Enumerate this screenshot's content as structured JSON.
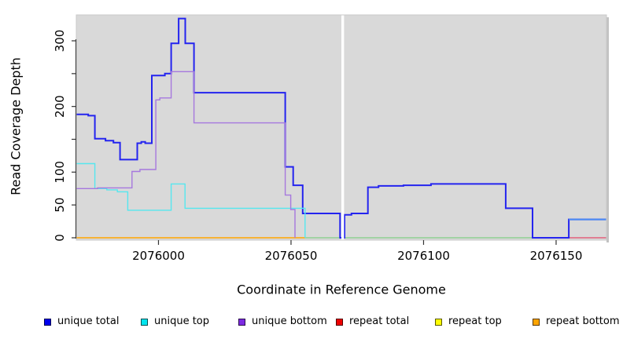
{
  "chart_data": {
    "type": "line",
    "title": "",
    "xlabel": "Coordinate in Reference Genome",
    "ylabel": "Read Coverage Depth",
    "xlim": [
      2075969,
      2076169
    ],
    "ylim": [
      0,
      339
    ],
    "grid": "off",
    "panel_bg": "#d9d9d9",
    "panel_border": "#c9c9c9",
    "x_axis": {
      "ticks": [
        2076000,
        2076050,
        2076100,
        2076150
      ]
    },
    "y_axis": {
      "ticks": [
        0,
        50,
        100,
        150,
        200,
        250,
        300
      ],
      "labeled_ticks": [
        0,
        50,
        100,
        200,
        300
      ]
    },
    "gap_band": {
      "from": 2076069.0,
      "to": 2076070.0,
      "color": "#ffffff",
      "note": "vertical white band, no data"
    },
    "zero_line_segments": [
      {
        "color": "#ffa500",
        "from": 2075969,
        "to": 2076055.3,
        "note": "repeat bottom visible at depth 0"
      },
      {
        "color": "#8fcf92",
        "from": 2076055.3,
        "to": 2076154.8,
        "note": "unique top at 0 blended over repeat lines (green)"
      },
      {
        "color": "#e2607b",
        "from": 2076154.8,
        "to": 2076169,
        "note": "repeat total visible at depth 0"
      }
    ],
    "series": [
      {
        "name": "unique total",
        "color": "#2424ef",
        "line_width": 2,
        "points": [
          [
            2075969,
            188
          ],
          [
            2075973.5,
            186
          ],
          [
            2075976,
            151
          ],
          [
            2075980,
            148
          ],
          [
            2075983,
            145
          ],
          [
            2075985.5,
            119
          ],
          [
            2075992,
            144
          ],
          [
            2075993.5,
            146
          ],
          [
            2075995,
            144
          ],
          [
            2075997.5,
            247
          ],
          [
            2076002.4,
            250
          ],
          [
            2076004.8,
            296
          ],
          [
            2076007.6,
            334
          ],
          [
            2076010.1,
            296
          ],
          [
            2076013.4,
            221
          ],
          [
            2076047.8,
            108
          ],
          [
            2076050.8,
            80
          ],
          [
            2076054.4,
            37
          ],
          [
            2076068.5,
            0
          ],
          [
            2076070.2,
            35
          ],
          [
            2076072.8,
            37
          ],
          [
            2076079,
            77
          ],
          [
            2076083,
            79
          ],
          [
            2076092.4,
            80
          ],
          [
            2076102.8,
            82
          ],
          [
            2076131,
            45
          ],
          [
            2076141.1,
            0
          ],
          [
            2076154.8,
            28
          ],
          [
            2076169,
            28
          ]
        ]
      },
      {
        "name": "unique top",
        "color": "#55e7ef",
        "line_width": 1.4,
        "points": [
          [
            2075969,
            113
          ],
          [
            2075976,
            75
          ],
          [
            2075980.5,
            73
          ],
          [
            2075984.5,
            70
          ],
          [
            2075988.4,
            42
          ],
          [
            2076004.8,
            82
          ],
          [
            2076010,
            45
          ],
          [
            2076055.3,
            0
          ]
        ]
      },
      {
        "name": "unique bottom",
        "color": "#a678de",
        "line_width": 1.4,
        "points": [
          [
            2075969,
            75
          ],
          [
            2075977,
            76
          ],
          [
            2075990,
            101
          ],
          [
            2075993,
            104
          ],
          [
            2075999,
            210
          ],
          [
            2076000.5,
            213
          ],
          [
            2076004.8,
            253
          ],
          [
            2076013.4,
            175
          ],
          [
            2076047.8,
            65
          ],
          [
            2076049.9,
            43
          ],
          [
            2076051.5,
            0
          ]
        ]
      },
      {
        "name": "repeat total",
        "color": "#e2607b",
        "line_width": 1.4,
        "points": [
          [
            2076154.8,
            0
          ],
          [
            2076169,
            0
          ]
        ]
      },
      {
        "name": "repeat top",
        "color": "#ffff00",
        "line_width": 1.4,
        "points": []
      },
      {
        "name": "repeat bottom",
        "color": "#ffa500",
        "line_width": 1.6,
        "points": [
          [
            2075969,
            0
          ],
          [
            2076055.3,
            0
          ]
        ]
      }
    ],
    "highlight_segments": [
      {
        "color": "#4b8bf3",
        "value": 28,
        "from": 2076154.8,
        "to": 2076169,
        "width": 2,
        "note": "final unique-total segment appears lighter blue"
      }
    ],
    "legend": {
      "position": "bottom",
      "items": [
        {
          "label": "unique total",
          "color": "#0000ee"
        },
        {
          "label": "unique top",
          "color": "#00e5ee"
        },
        {
          "label": "unique bottom",
          "color": "#7d2ae2"
        },
        {
          "label": "repeat total",
          "color": "#ee0000"
        },
        {
          "label": "repeat top",
          "color": "#ffff00"
        },
        {
          "label": "repeat bottom",
          "color": "#ffa500"
        }
      ]
    }
  }
}
